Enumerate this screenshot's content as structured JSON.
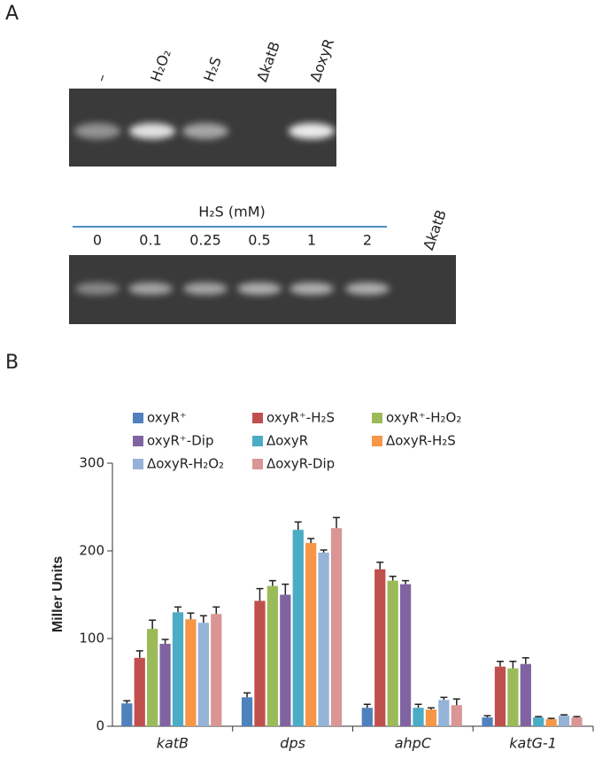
{
  "panel_labels": [
    "A",
    "B"
  ],
  "gel_1": {
    "lanes": [
      "–",
      "H₂O₂",
      "H₂S",
      "ΔkatB",
      "ΔoxyR"
    ]
  },
  "gel_2": {
    "title": "H₂S (mM)",
    "lanes": [
      "0",
      "0.1",
      "0.25",
      "0.5",
      "1",
      "2"
    ],
    "control_lane": "ΔkatB"
  },
  "chart_data": {
    "type": "bar",
    "y_label": "Miller Units",
    "categories": [
      "katB",
      "dps",
      "ahpC",
      "katG-1"
    ],
    "series": [
      {
        "name": "oxyR⁺",
        "color": "#4f81bd",
        "values": [
          26,
          33,
          21,
          10
        ],
        "errors": [
          3,
          5,
          4,
          2
        ]
      },
      {
        "name": "oxyR⁺-H₂S",
        "color": "#c0504d",
        "values": [
          78,
          143,
          179,
          68
        ],
        "errors": [
          8,
          14,
          8,
          6
        ]
      },
      {
        "name": "oxyR⁺-H₂O₂",
        "color": "#9bbb59",
        "values": [
          111,
          160,
          166,
          66
        ],
        "errors": [
          10,
          6,
          5,
          8
        ]
      },
      {
        "name": "oxyR⁺-Dip",
        "color": "#8064a2",
        "values": [
          94,
          150,
          162,
          71
        ],
        "errors": [
          5,
          12,
          4,
          7
        ]
      },
      {
        "name": "ΔoxyR",
        "color": "#4bacc6",
        "values": [
          130,
          224,
          21,
          10
        ],
        "errors": [
          6,
          9,
          4,
          1
        ]
      },
      {
        "name": "ΔoxyR-H₂S",
        "color": "#f79646",
        "values": [
          122,
          209,
          19,
          8
        ],
        "errors": [
          7,
          5,
          2,
          1
        ]
      },
      {
        "name": "ΔoxyR-H₂O₂",
        "color": "#95b3d7",
        "values": [
          118,
          198,
          30,
          12
        ],
        "errors": [
          8,
          3,
          3,
          1
        ]
      },
      {
        "name": "ΔoxyR-Dip",
        "color": "#d99694",
        "values": [
          128,
          226,
          24,
          10
        ],
        "errors": [
          8,
          12,
          7,
          1
        ]
      }
    ],
    "ylim": [
      0,
      300
    ],
    "yticks": [
      0,
      100,
      200,
      300
    ],
    "grid": false
  }
}
